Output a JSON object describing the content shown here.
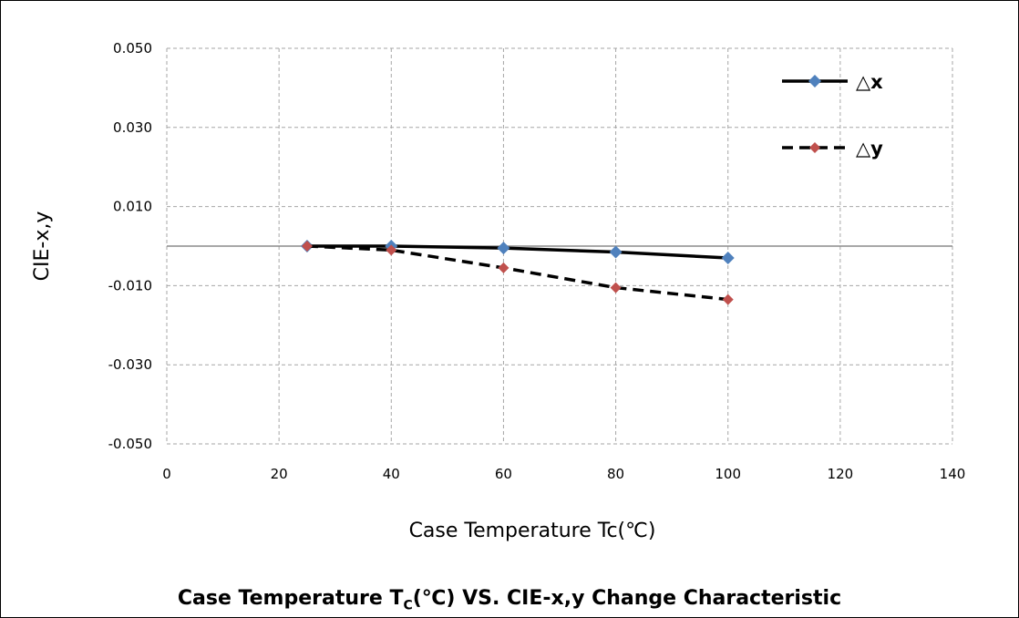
{
  "chart_data": {
    "type": "line",
    "caption": {
      "before": "Case Temperature T",
      "sub": "C",
      "after": "(℃) VS. CIE-x,y Change Characteristic"
    },
    "xlabel": "Case Temperature Tc(℃)",
    "ylabel": "CIE-x,y",
    "xlim": [
      0,
      140
    ],
    "ylim": [
      -0.05,
      0.05
    ],
    "xticks": [
      "0",
      "20",
      "40",
      "60",
      "80",
      "100",
      "120",
      "140"
    ],
    "xtick_values": [
      0,
      20,
      40,
      60,
      80,
      100,
      120,
      140
    ],
    "yticks": [
      "0.050",
      "0.030",
      "0.010",
      "-0.010",
      "-0.030",
      "-0.050"
    ],
    "ytick_values": [
      0.05,
      0.03,
      0.01,
      -0.01,
      -0.03,
      -0.05
    ],
    "grid": true,
    "legend_position": "top-right",
    "series": [
      {
        "name": "△x",
        "color": "#000000",
        "marker_color": "#4F81BD",
        "line_style": "solid",
        "x": [
          25,
          40,
          60,
          80,
          100
        ],
        "y": [
          0.0,
          0.0,
          -0.0005,
          -0.0015,
          -0.003
        ]
      },
      {
        "name": "△y",
        "color": "#000000",
        "marker_color": "#C0504D",
        "line_style": "dashed",
        "x": [
          25,
          40,
          60,
          80,
          100
        ],
        "y": [
          0.0,
          -0.001,
          -0.0055,
          -0.0105,
          -0.0135
        ]
      }
    ]
  }
}
